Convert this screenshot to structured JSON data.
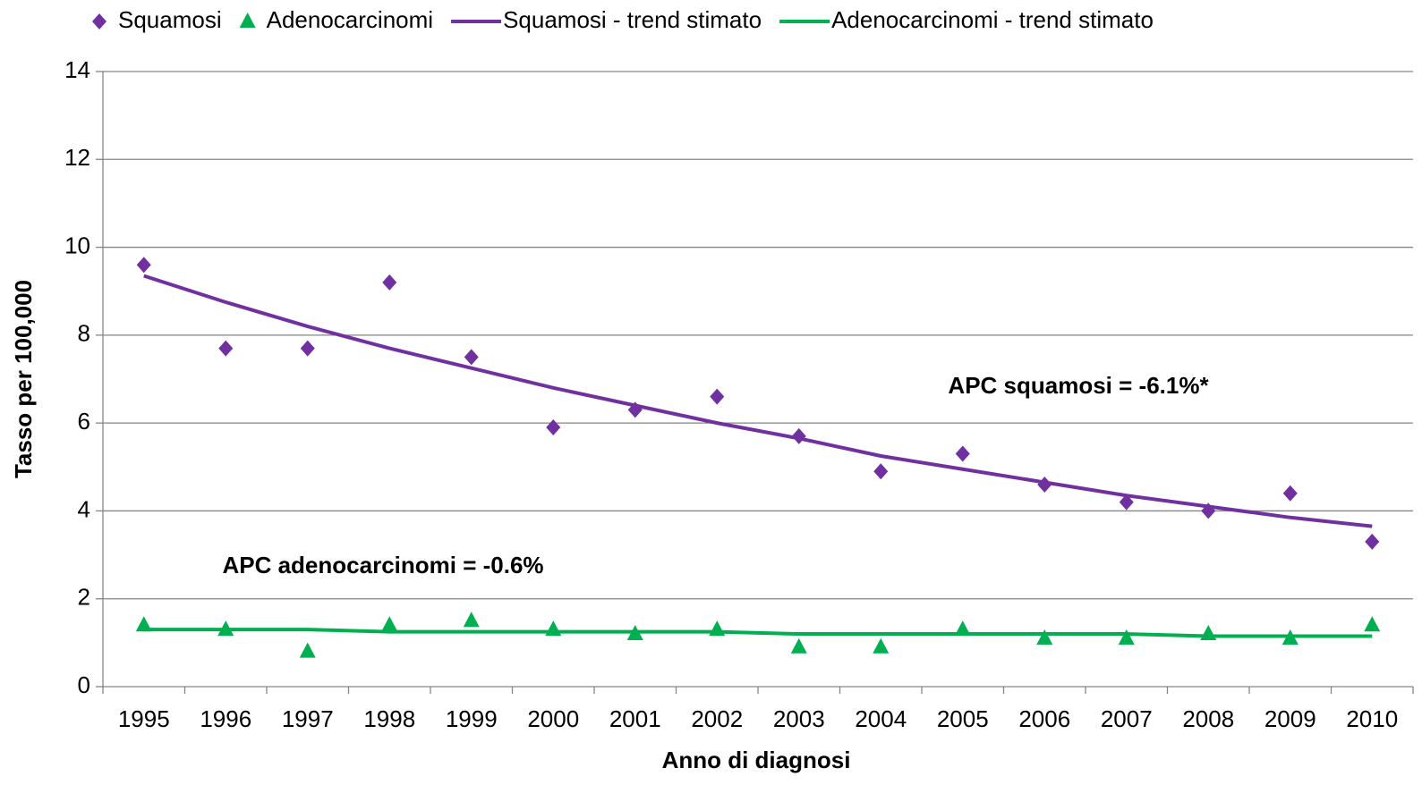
{
  "chart_data": {
    "type": "line",
    "x_label": "Anno di diagnosi",
    "y_label": "Tasso per 100,000",
    "categories": [
      "1995",
      "1996",
      "1997",
      "1998",
      "1999",
      "2000",
      "2001",
      "2002",
      "2003",
      "2004",
      "2005",
      "2006",
      "2007",
      "2008",
      "2009",
      "2010"
    ],
    "ylim": [
      0,
      14
    ],
    "yticks": [
      0,
      2,
      4,
      6,
      8,
      10,
      12,
      14
    ],
    "grid": true,
    "legend": "top",
    "series": [
      {
        "name": "Squamosi",
        "color": "#7030a0",
        "mode": "markers",
        "marker": "diamond",
        "values": [
          9.6,
          7.7,
          7.7,
          9.2,
          7.5,
          5.9,
          6.3,
          6.6,
          5.7,
          4.9,
          5.3,
          4.6,
          4.2,
          4.0,
          4.4,
          3.3
        ]
      },
      {
        "name": "Adenocarcinomi",
        "color": "#00b050",
        "mode": "markers",
        "marker": "triangle",
        "values": [
          1.4,
          1.3,
          0.8,
          1.4,
          1.5,
          1.3,
          1.2,
          1.3,
          0.9,
          0.9,
          1.3,
          1.1,
          1.1,
          1.2,
          1.1,
          1.4
        ]
      },
      {
        "name": "Squamosi - trend stimato",
        "color": "#7030a0",
        "mode": "line",
        "values": [
          9.35,
          8.75,
          8.2,
          7.7,
          7.25,
          6.8,
          6.4,
          6.0,
          5.65,
          5.25,
          4.95,
          4.65,
          4.35,
          4.1,
          3.85,
          3.65
        ]
      },
      {
        "name": "Adenocarcinomi - trend stimato",
        "color": "#00b050",
        "mode": "line",
        "values": [
          1.3,
          1.3,
          1.3,
          1.25,
          1.25,
          1.25,
          1.25,
          1.25,
          1.2,
          1.2,
          1.2,
          1.2,
          1.2,
          1.15,
          1.15,
          1.15
        ]
      }
    ],
    "annotations": [
      "APC squamosi = -6.1%*",
      "APC adenocarcinomi  = -0.6%"
    ]
  }
}
